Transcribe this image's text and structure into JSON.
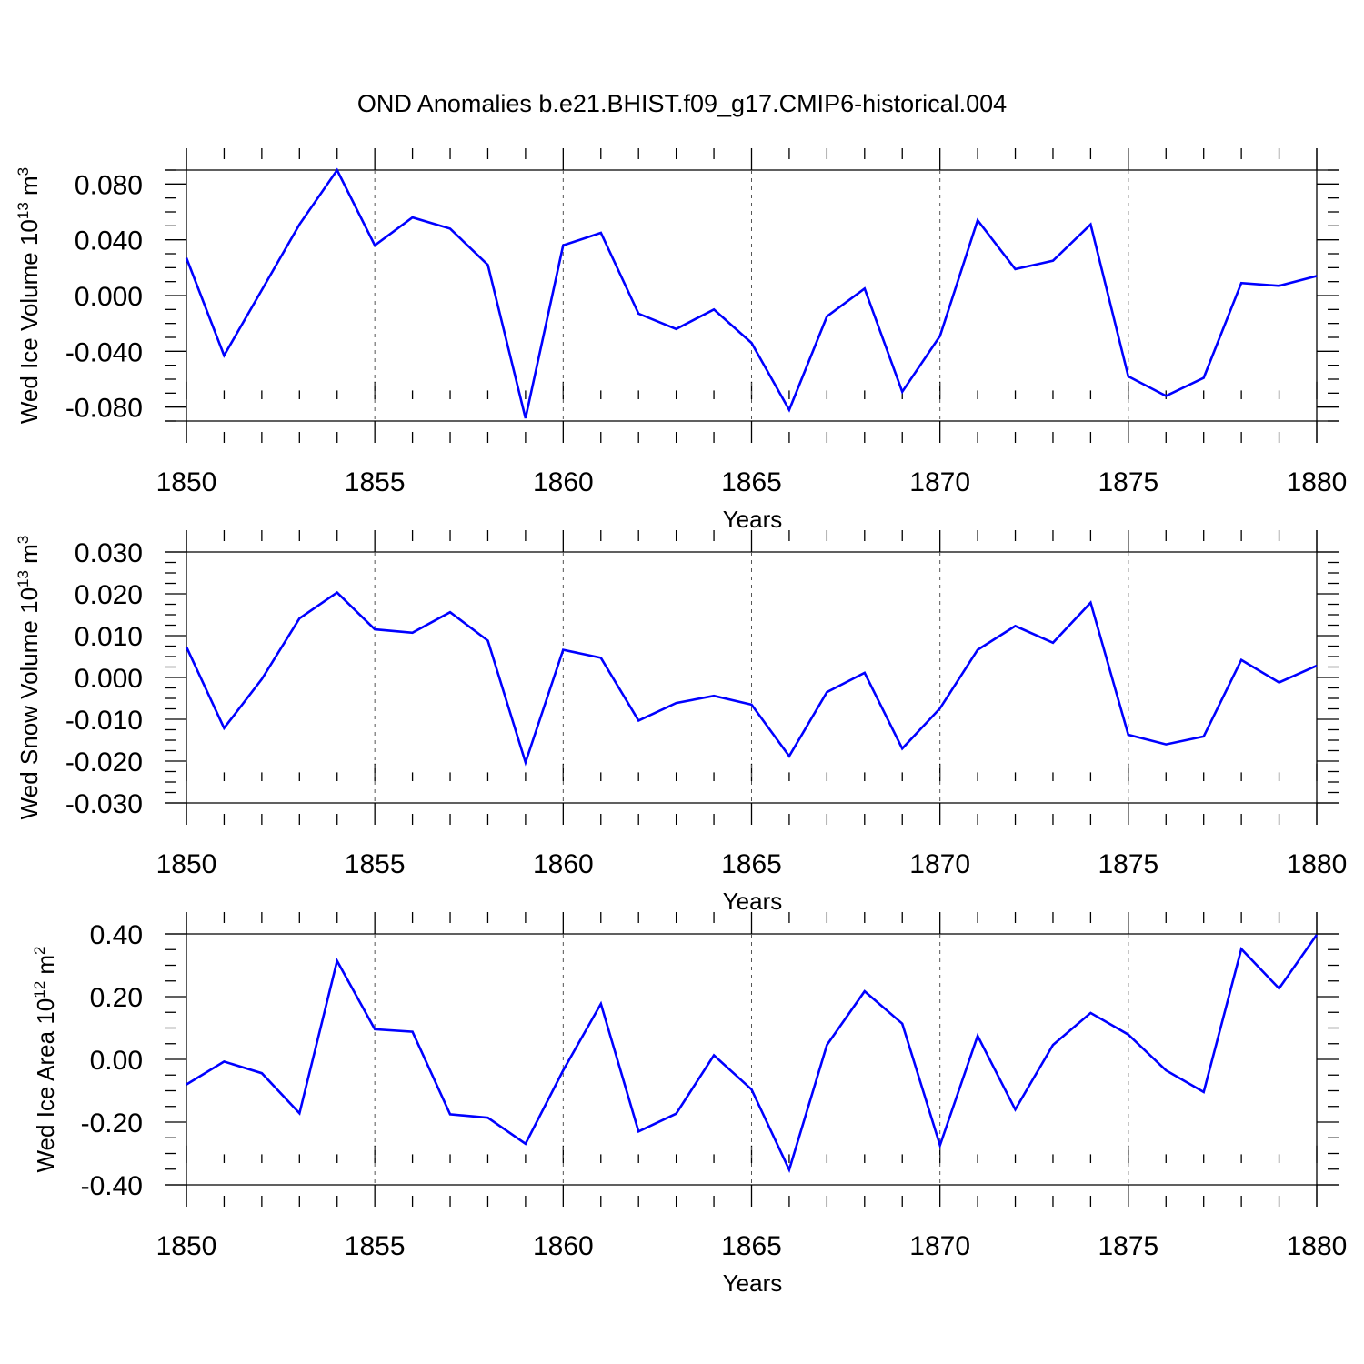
{
  "title": "OND Anomalies b.e21.BHIST.f09_g17.CMIP6-historical.004",
  "line_color": "#0000ff",
  "chart_data": [
    {
      "type": "line",
      "xlabel": "Years",
      "ylabel": {
        "base": "Wed Ice Volume 10",
        "exp": "13",
        "unit": " m",
        "unit_exp": "3"
      },
      "xlim": [
        1850,
        1880
      ],
      "ylim": [
        -0.09,
        0.09
      ],
      "xticks": [
        "1850",
        "1855",
        "1860",
        "1865",
        "1870",
        "1875",
        "1880"
      ],
      "yticks": [
        "-0.080",
        "-0.040",
        "0.000",
        "0.040",
        "0.080"
      ],
      "grid": "vertical dashed at major x ticks",
      "x": [
        1850,
        1851,
        1852,
        1853,
        1854,
        1855,
        1856,
        1857,
        1858,
        1859,
        1860,
        1861,
        1862,
        1863,
        1864,
        1865,
        1866,
        1867,
        1868,
        1869,
        1870,
        1871,
        1872,
        1873,
        1874,
        1875,
        1876,
        1877,
        1878,
        1879,
        1880
      ],
      "values": [
        0.027,
        -0.043,
        0.004,
        0.051,
        0.09,
        0.036,
        0.056,
        0.048,
        0.022,
        -0.088,
        0.036,
        0.045,
        -0.013,
        -0.024,
        -0.01,
        -0.034,
        -0.082,
        -0.015,
        0.005,
        -0.069,
        -0.029,
        0.054,
        0.019,
        0.025,
        0.051,
        -0.058,
        -0.072,
        -0.059,
        0.009,
        0.007,
        0.014
      ]
    },
    {
      "type": "line",
      "xlabel": "Years",
      "ylabel": {
        "base": "Wed Snow Volume 10",
        "exp": "13",
        "unit": " m",
        "unit_exp": "3"
      },
      "xlim": [
        1850,
        1880
      ],
      "ylim": [
        -0.03,
        0.03
      ],
      "xticks": [
        "1850",
        "1855",
        "1860",
        "1865",
        "1870",
        "1875",
        "1880"
      ],
      "yticks": [
        "-0.030",
        "-0.020",
        "-0.010",
        "0.000",
        "0.010",
        "0.020",
        "0.030"
      ],
      "grid": "vertical dashed at major x ticks",
      "x": [
        1850,
        1851,
        1852,
        1853,
        1854,
        1855,
        1856,
        1857,
        1858,
        1859,
        1860,
        1861,
        1862,
        1863,
        1864,
        1865,
        1866,
        1867,
        1868,
        1869,
        1870,
        1871,
        1872,
        1873,
        1874,
        1875,
        1876,
        1877,
        1878,
        1879,
        1880
      ],
      "values": [
        0.0073,
        -0.0121,
        -0.0004,
        0.0141,
        0.0203,
        0.0115,
        0.0107,
        0.0156,
        0.0088,
        -0.0203,
        0.0066,
        0.0047,
        -0.0103,
        -0.0061,
        -0.0044,
        -0.0065,
        -0.0188,
        -0.0035,
        0.0011,
        -0.017,
        -0.0074,
        0.0066,
        0.0123,
        0.0083,
        0.0179,
        -0.0137,
        -0.016,
        -0.0141,
        0.0042,
        -0.0012,
        0.0028
      ]
    },
    {
      "type": "line",
      "xlabel": "Years",
      "ylabel": {
        "base": "Wed Ice Area 10",
        "exp": "12",
        "unit": " m",
        "unit_exp": "2"
      },
      "xlim": [
        1850,
        1880
      ],
      "ylim": [
        -0.4,
        0.4
      ],
      "xticks": [
        "1850",
        "1855",
        "1860",
        "1865",
        "1870",
        "1875",
        "1880"
      ],
      "yticks": [
        "-0.40",
        "-0.20",
        "0.00",
        "0.20",
        "0.40"
      ],
      "grid": "vertical dashed at major x ticks",
      "x": [
        1850,
        1851,
        1852,
        1853,
        1854,
        1855,
        1856,
        1857,
        1858,
        1859,
        1860,
        1861,
        1862,
        1863,
        1864,
        1865,
        1866,
        1867,
        1868,
        1869,
        1870,
        1871,
        1872,
        1873,
        1874,
        1875,
        1876,
        1877,
        1878,
        1879,
        1880
      ],
      "values": [
        -0.08,
        -0.007,
        -0.044,
        -0.172,
        0.314,
        0.096,
        0.088,
        -0.175,
        -0.186,
        -0.269,
        -0.035,
        0.177,
        -0.23,
        -0.173,
        0.013,
        -0.096,
        -0.352,
        0.046,
        0.217,
        0.114,
        -0.274,
        0.075,
        -0.16,
        0.046,
        0.148,
        0.079,
        -0.035,
        -0.104,
        0.352,
        0.226,
        0.397
      ]
    }
  ]
}
